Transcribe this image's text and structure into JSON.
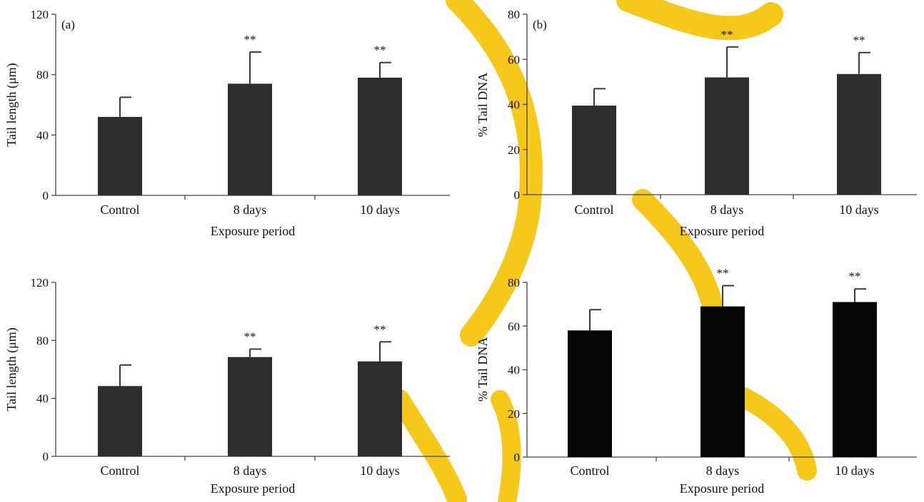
{
  "colors": {
    "bar_dark": "#2e2c2c",
    "bar_black": "#060606",
    "axis": "#444444",
    "watermark": "#f5c200"
  },
  "chart_data": [
    {
      "type": "bar",
      "panel_tag": "(a)",
      "categories": [
        "Control",
        "8 days",
        "10 days"
      ],
      "values": [
        52,
        74,
        78
      ],
      "errors": [
        13,
        21,
        10
      ],
      "significance": [
        "",
        "**",
        "**"
      ],
      "xlabel": "Exposure period",
      "ylabel": "Tail length (μm)",
      "ylim": [
        0,
        120
      ],
      "yticks": [
        0,
        40,
        80,
        120
      ],
      "bar_color": "#2e2c2c",
      "grid": false
    },
    {
      "type": "bar",
      "panel_tag": "(b)",
      "categories": [
        "Control",
        "8 days",
        "10 days"
      ],
      "values": [
        39.5,
        52,
        53.5
      ],
      "errors": [
        7.5,
        13.5,
        9.5
      ],
      "significance": [
        "",
        "**",
        "**"
      ],
      "xlabel": "Exposure period",
      "ylabel": "% Tail DNA",
      "ylim": [
        0,
        80
      ],
      "yticks": [
        0,
        20,
        40,
        60,
        80
      ],
      "bar_color": "#2e2c2c",
      "grid": false
    },
    {
      "type": "bar",
      "panel_tag": "",
      "categories": [
        "Control",
        "8 days",
        "10 days"
      ],
      "values": [
        48.5,
        68.5,
        65.5
      ],
      "errors": [
        14.5,
        5.5,
        13.5
      ],
      "significance": [
        "",
        "**",
        "**"
      ],
      "xlabel": "Exposure period",
      "ylabel": "Tail length (μm)",
      "ylim": [
        0,
        120
      ],
      "yticks": [
        0,
        40,
        80,
        120
      ],
      "bar_color": "#2e2c2c",
      "grid": false
    },
    {
      "type": "bar",
      "panel_tag": "",
      "categories": [
        "Control",
        "8 days",
        "10 days"
      ],
      "values": [
        58,
        69,
        71
      ],
      "errors": [
        9.5,
        9.5,
        6
      ],
      "significance": [
        "",
        "**",
        "**"
      ],
      "xlabel": "Exposure period",
      "ylabel": "% Tail DNA",
      "ylim": [
        0,
        80
      ],
      "yticks": [
        0,
        20,
        40,
        60,
        80
      ],
      "bar_color": "#060606",
      "grid": false
    }
  ]
}
